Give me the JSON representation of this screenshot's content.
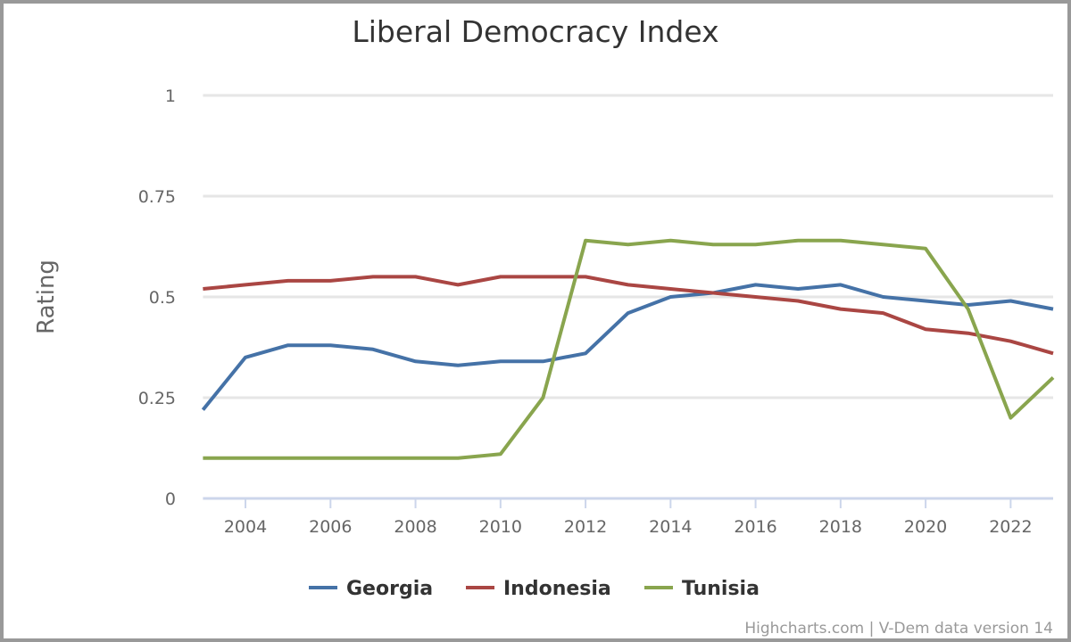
{
  "chart_data": {
    "type": "line",
    "title": "Liberal Democracy Index",
    "xlabel": "",
    "ylabel": "Rating",
    "xlim": [
      2003,
      2023
    ],
    "ylim": [
      0,
      1
    ],
    "x_ticks": [
      2004,
      2006,
      2008,
      2010,
      2012,
      2014,
      2016,
      2018,
      2020,
      2022
    ],
    "y_ticks": [
      0,
      0.25,
      0.5,
      0.75,
      1
    ],
    "y_tick_labels": [
      "0",
      "0.25",
      "0.5",
      "0.75",
      "1"
    ],
    "grid": "horizontal",
    "legend_placement": "bottom",
    "x": [
      2003,
      2004,
      2005,
      2006,
      2007,
      2008,
      2009,
      2010,
      2011,
      2012,
      2013,
      2014,
      2015,
      2016,
      2017,
      2018,
      2019,
      2020,
      2021,
      2022,
      2023
    ],
    "series": [
      {
        "name": "Georgia",
        "color": "#4572a7",
        "values": [
          0.22,
          0.35,
          0.38,
          0.38,
          0.37,
          0.34,
          0.33,
          0.34,
          0.34,
          0.36,
          0.46,
          0.5,
          0.51,
          0.53,
          0.52,
          0.53,
          0.5,
          0.49,
          0.48,
          0.49,
          0.47
        ]
      },
      {
        "name": "Indonesia",
        "color": "#aa4643",
        "values": [
          0.52,
          0.53,
          0.54,
          0.54,
          0.55,
          0.55,
          0.53,
          0.55,
          0.55,
          0.55,
          0.53,
          0.52,
          0.51,
          0.5,
          0.49,
          0.47,
          0.46,
          0.42,
          0.41,
          0.39,
          0.36
        ]
      },
      {
        "name": "Tunisia",
        "color": "#89a54e",
        "values": [
          0.1,
          0.1,
          0.1,
          0.1,
          0.1,
          0.1,
          0.1,
          0.11,
          0.25,
          0.64,
          0.63,
          0.64,
          0.63,
          0.63,
          0.64,
          0.64,
          0.63,
          0.62,
          0.47,
          0.2,
          0.3
        ]
      }
    ],
    "credits": "Highcharts.com | V-Dem data version 14"
  }
}
